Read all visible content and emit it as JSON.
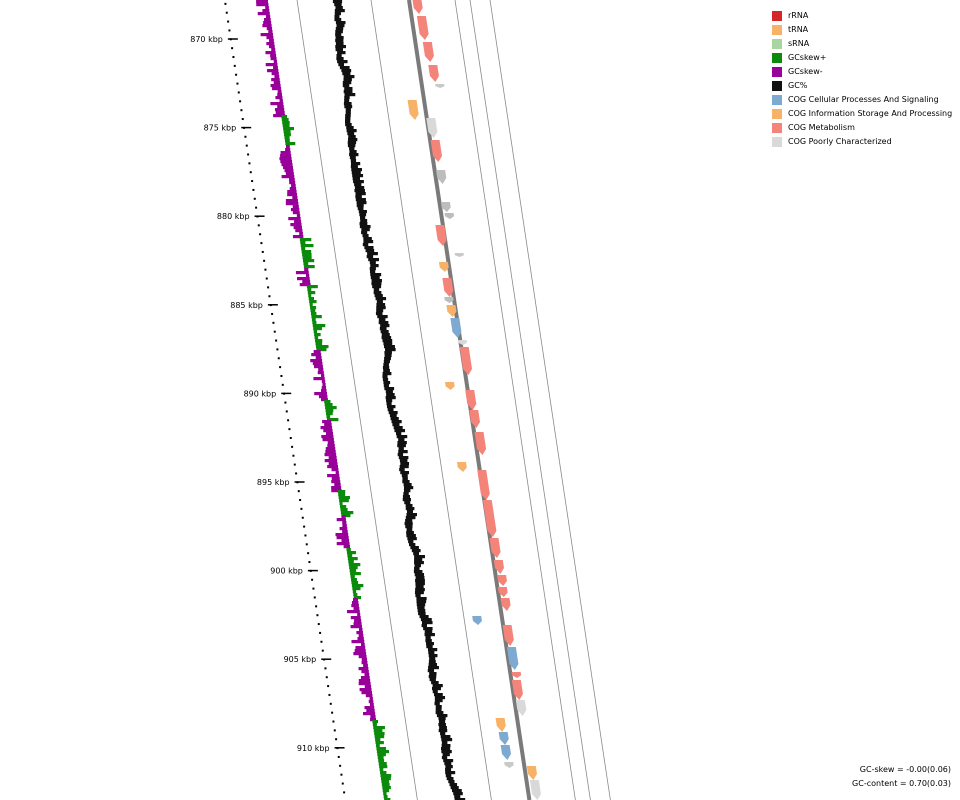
{
  "legend": [
    {
      "label": "rRNA",
      "color": "#d62728"
    },
    {
      "label": "tRNA",
      "color": "#f7b267"
    },
    {
      "label": "sRNA",
      "color": "#a8d5a2"
    },
    {
      "label": "GCskew+",
      "color": "#0b8a0b"
    },
    {
      "label": "GCskew-",
      "color": "#990099"
    },
    {
      "label": "GC%",
      "color": "#111111"
    },
    {
      "label": "COG Cellular Processes And Signaling",
      "color": "#7eaad1"
    },
    {
      "label": "COG Information Storage And Processing",
      "color": "#f7b267"
    },
    {
      "label": "COG Metabolism",
      "color": "#f4837a"
    },
    {
      "label": "COG Poorly Characterized",
      "color": "#d9d9d9"
    }
  ],
  "ruler_labels": [
    "870 kbp",
    "875 kbp",
    "880 kbp",
    "885 kbp",
    "890 kbp",
    "895 kbp",
    "900 kbp",
    "905 kbp",
    "910 kbp"
  ],
  "stats": {
    "gc_skew": "GC-skew = -0.00(0.06)",
    "gc_content": "GC-content = 0.70(0.03)"
  }
}
